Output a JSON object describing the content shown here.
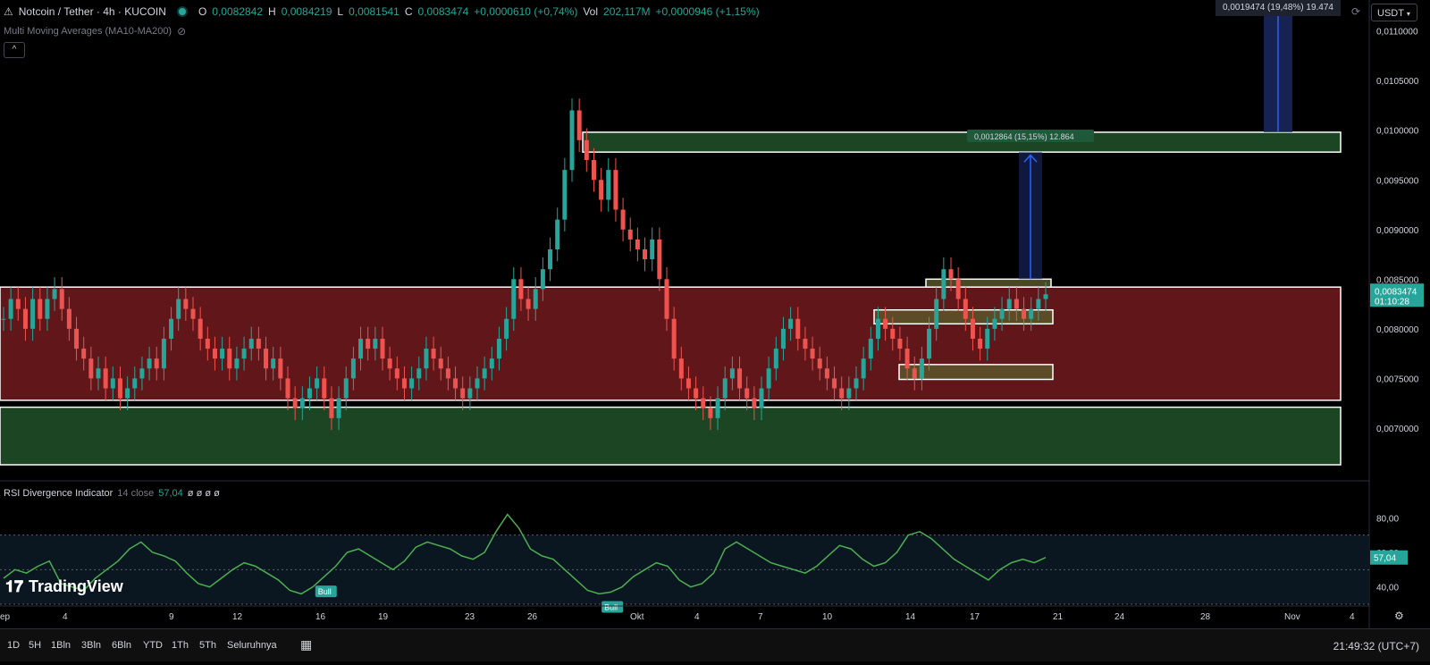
{
  "header": {
    "symbol": "Notcoin / Tether · 4h · KUCOIN",
    "open_label": "O",
    "open": "0,0082842",
    "high_label": "H",
    "high": "0,0084219",
    "low_label": "L",
    "low": "0,0081541",
    "close_label": "C",
    "close": "0,0083474",
    "change": "+0,0000610 (+0,74%)",
    "vol_label": "Vol",
    "vol": "202,117M",
    "vol_change": "+0,0000946 (+1,15%)"
  },
  "indicator": {
    "name": "Multi Moving Averages (MA10-MA200)"
  },
  "collapse_label": "^",
  "currency": "USDT",
  "top_measure": "0,0019474 (19,48%) 19.474",
  "mid_measure": "0,0012864 (15,15%) 12.864",
  "price_label": {
    "value": "0,0083474",
    "countdown": "01:10:28"
  },
  "rsi": {
    "name": "RSI Divergence Indicator",
    "params": "14 close",
    "value": "57,04",
    "placeholders": "ø ø ø ø",
    "label": "57,04"
  },
  "logo": "TradingView",
  "timeframes": [
    "1D",
    "5H",
    "1Bln",
    "3Bln",
    "6Bln",
    "YTD",
    "1Th",
    "5Th",
    "Seluruhnya"
  ],
  "clock": "21:49:32 (UTC+7)",
  "colors": {
    "up": "#26a69a",
    "down": "#ef5350",
    "red_zone": "#6b1a1d",
    "green_zone": "#1f4d27",
    "rsi_line": "#4caf50",
    "measure": "#2962ff"
  },
  "chart_data": {
    "type": "candlestick",
    "price_axis": {
      "ticks": [
        "0,0110000",
        "0,0105000",
        "0,0100000",
        "0,0095000",
        "0,0090000",
        "0,0085000",
        "0,0080000",
        "0,0075000",
        "0,0070000"
      ],
      "values": [
        0.011,
        0.0105,
        0.01,
        0.0095,
        0.009,
        0.0085,
        0.008,
        0.0075,
        0.007
      ],
      "range": [
        0.00663,
        0.01115
      ]
    },
    "time_axis": {
      "labels": [
        "ep",
        "4",
        "9",
        "12",
        "16",
        "19",
        "23",
        "26",
        "Okt",
        "4",
        "7",
        "10",
        "14",
        "17",
        "21",
        "24",
        "28",
        "Nov",
        "4"
      ]
    },
    "zones": [
      {
        "type": "resistance",
        "from": 0.00978,
        "to": 0.00998
      },
      {
        "type": "range",
        "from": 0.00728,
        "to": 0.00842
      },
      {
        "type": "support",
        "from": 0.00663,
        "to": 0.00721
      }
    ],
    "order_blocks": [
      {
        "from": 0.00842,
        "to": 0.0085
      },
      {
        "from": 0.00805,
        "to": 0.00819
      },
      {
        "from": 0.00749,
        "to": 0.00764
      }
    ],
    "close_series": [
      0.0081,
      0.0083,
      0.0082,
      0.008,
      0.0083,
      0.0081,
      0.0083,
      0.0084,
      0.0082,
      0.008,
      0.0078,
      0.0077,
      0.0075,
      0.0076,
      0.0074,
      0.0075,
      0.0073,
      0.0074,
      0.0075,
      0.0076,
      0.0077,
      0.0076,
      0.0079,
      0.0081,
      0.0083,
      0.0082,
      0.0081,
      0.0079,
      0.0078,
      0.0077,
      0.0078,
      0.0076,
      0.0077,
      0.0078,
      0.0079,
      0.0078,
      0.0076,
      0.0077,
      0.0075,
      0.0073,
      0.0072,
      0.0073,
      0.0074,
      0.0075,
      0.0073,
      0.0071,
      0.0073,
      0.0075,
      0.0077,
      0.0079,
      0.0078,
      0.0079,
      0.0077,
      0.0076,
      0.0075,
      0.0074,
      0.0075,
      0.0076,
      0.0078,
      0.0077,
      0.0076,
      0.0075,
      0.0074,
      0.0073,
      0.0074,
      0.0075,
      0.0076,
      0.0077,
      0.0079,
      0.0081,
      0.0085,
      0.0083,
      0.0082,
      0.0084,
      0.0086,
      0.0088,
      0.0091,
      0.0096,
      0.0102,
      0.0099,
      0.0097,
      0.0095,
      0.0093,
      0.0096,
      0.0092,
      0.009,
      0.0089,
      0.0088,
      0.0087,
      0.0089,
      0.0085,
      0.0081,
      0.0077,
      0.0075,
      0.0074,
      0.0073,
      0.0072,
      0.0071,
      0.0073,
      0.0075,
      0.0076,
      0.0074,
      0.0073,
      0.0072,
      0.0074,
      0.0076,
      0.0078,
      0.008,
      0.0081,
      0.0079,
      0.0078,
      0.0077,
      0.0076,
      0.0075,
      0.0074,
      0.0073,
      0.0074,
      0.0075,
      0.0077,
      0.0079,
      0.0081,
      0.008,
      0.0079,
      0.0078,
      0.0076,
      0.0075,
      0.0077,
      0.008,
      0.0083,
      0.0086,
      0.0085,
      0.0083,
      0.0081,
      0.0079,
      0.0078,
      0.008,
      0.0081,
      0.0082,
      0.0083,
      0.0082,
      0.0081,
      0.0082,
      0.0083,
      0.0083474
    ],
    "rsi_axis": {
      "ticks": [
        "80,00",
        "60,00",
        "40,00"
      ],
      "values": [
        80,
        60,
        40
      ]
    },
    "rsi_series": [
      45,
      50,
      48,
      52,
      55,
      42,
      40,
      38,
      45,
      50,
      55,
      62,
      66,
      60,
      58,
      55,
      48,
      42,
      40,
      45,
      50,
      54,
      52,
      48,
      44,
      38,
      36,
      40,
      46,
      52,
      60,
      62,
      58,
      54,
      50,
      55,
      63,
      66,
      64,
      62,
      58,
      56,
      60,
      72,
      82,
      74,
      62,
      58,
      56,
      50,
      44,
      38,
      36,
      37,
      40,
      46,
      50,
      54,
      52,
      44,
      40,
      42,
      48,
      62,
      66,
      62,
      58,
      54,
      52,
      50,
      48,
      52,
      58,
      64,
      62,
      56,
      52,
      54,
      60,
      70,
      72,
      68,
      62,
      56,
      52,
      48,
      44,
      50,
      54,
      56,
      54,
      57.04
    ],
    "divergence_labels": [
      "Bull",
      "Bull"
    ]
  }
}
